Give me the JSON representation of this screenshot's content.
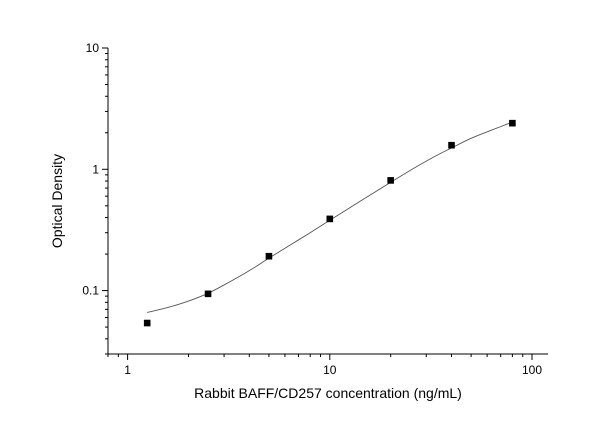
{
  "chart_data": {
    "type": "scatter",
    "xlabel": "Rabbit BAFF/CD257 concentration (ng/mL)",
    "ylabel": "Optical Density",
    "x_scale": "log",
    "y_scale": "log",
    "xlim": [
      0.8,
      120
    ],
    "ylim": [
      0.03,
      10
    ],
    "x_ticks": [
      1,
      10,
      100
    ],
    "y_ticks": [
      0.1,
      1,
      10
    ],
    "x_tick_labels": [
      "1",
      "10",
      "100"
    ],
    "y_tick_labels": [
      "0.1",
      "1",
      "10"
    ],
    "grid": false,
    "legend": "none",
    "series": [
      {
        "kind": "points",
        "x": [
          1.25,
          2.5,
          5,
          10,
          20,
          40,
          80
        ],
        "y": [
          0.054,
          0.094,
          0.192,
          0.39,
          0.81,
          1.58,
          2.4
        ]
      },
      {
        "kind": "fitted-curve",
        "x": [
          1.25,
          1.6,
          2,
          2.5,
          3.2,
          4,
          5,
          6.3,
          8,
          10,
          12.5,
          16,
          20,
          25,
          32,
          40,
          50,
          63,
          80
        ],
        "y": [
          0.066,
          0.073,
          0.082,
          0.095,
          0.118,
          0.146,
          0.185,
          0.235,
          0.3,
          0.38,
          0.48,
          0.62,
          0.78,
          0.98,
          1.24,
          1.5,
          1.8,
          2.1,
          2.45
        ]
      }
    ]
  }
}
